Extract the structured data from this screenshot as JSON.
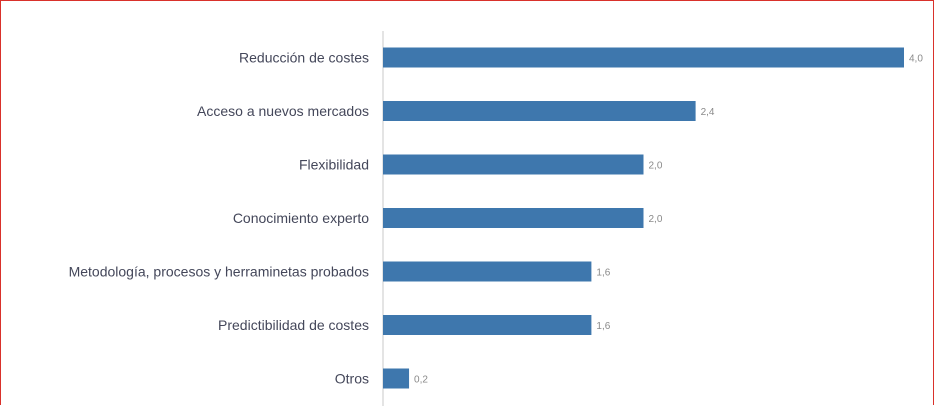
{
  "colors": {
    "bar": "#3e77ad",
    "frame": "#d9312b",
    "axis": "#c8c8c8"
  },
  "chart_data": {
    "type": "bar",
    "orientation": "horizontal",
    "categories": [
      "Reducción de costes",
      "Acceso a nuevos mercados",
      "Flexibilidad",
      "Conocimiento experto",
      "Metodología, procesos y herraminetas probados",
      "Predictibilidad de costes",
      "Otros"
    ],
    "values": [
      4.0,
      2.4,
      2.0,
      2.0,
      1.6,
      1.6,
      0.2
    ],
    "value_labels": [
      "4,0",
      "2,4",
      "2,0",
      "2,0",
      "1,6",
      "1,6",
      "0,2"
    ],
    "xlim": [
      0,
      4.0
    ],
    "grid": false,
    "legend": "none"
  }
}
